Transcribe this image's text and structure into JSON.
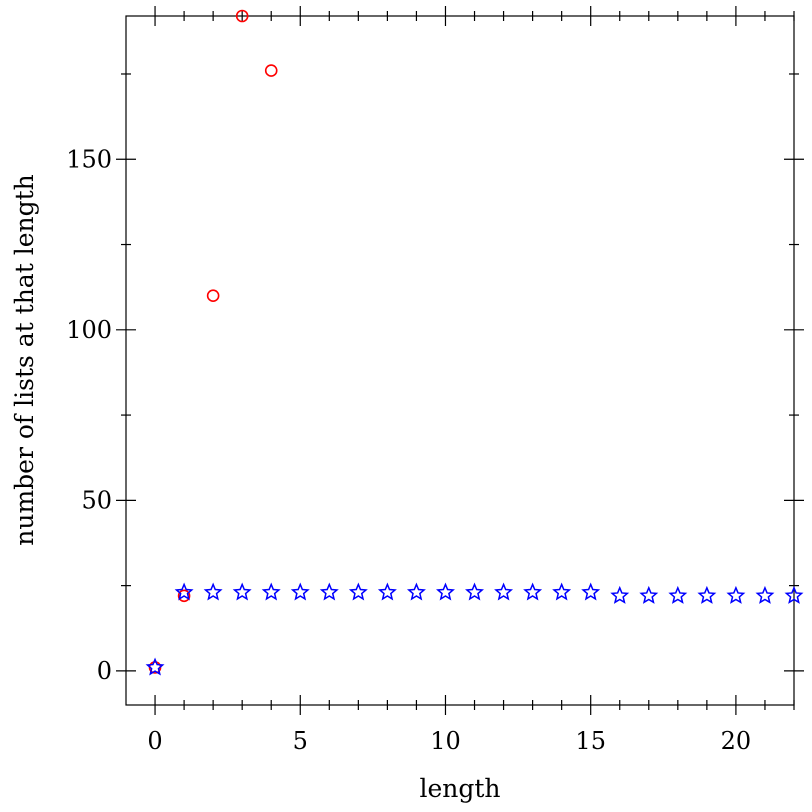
{
  "chart_data": {
    "type": "scatter",
    "title": "",
    "xlabel": "length",
    "ylabel": "number of lists at that length",
    "xlim": [
      -1,
      22
    ],
    "ylim": [
      -10,
      192
    ],
    "x_ticks": [
      0,
      5,
      10,
      15,
      20
    ],
    "y_ticks": [
      0,
      50,
      100,
      150
    ],
    "x_tick_labels": [
      "0",
      "5",
      "10",
      "15",
      "20"
    ],
    "y_tick_labels": [
      "0",
      "50",
      "100",
      "150"
    ],
    "grid": false,
    "legend": "none",
    "series": [
      {
        "marker": "circle",
        "color": "#ff0000",
        "x": [
          0,
          1,
          2,
          3,
          4
        ],
        "y": [
          1,
          22,
          110,
          192,
          176
        ]
      },
      {
        "marker": "star",
        "color": "#0000ff",
        "x": [
          0,
          1,
          2,
          3,
          4,
          5,
          6,
          7,
          8,
          9,
          10,
          11,
          12,
          13,
          14,
          15,
          16,
          17,
          18,
          19,
          20,
          21,
          22
        ],
        "y": [
          1,
          23,
          23,
          23,
          23,
          23,
          23,
          23,
          23,
          23,
          23,
          23,
          23,
          23,
          23,
          23,
          22,
          22,
          22,
          22,
          22,
          22,
          22
        ]
      }
    ]
  }
}
